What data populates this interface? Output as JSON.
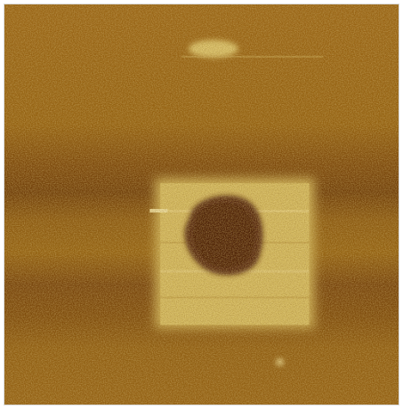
{
  "image": {
    "kind": "scanning-probe-micrograph",
    "palette": {
      "base": "#9a6612",
      "dark_band": "#6e3c08",
      "bright_frame": "#d8bf62",
      "bright_highlight": "#f0e09a",
      "dark_hole": "#4a1e04",
      "noise_light": "#c9a24a",
      "noise_dark": "#5a3008"
    },
    "features": [
      "square-bright-patch",
      "dark-central-hole",
      "bright-top-speck",
      "bright-bottom-speck",
      "horizontal-dark-bands"
    ]
  }
}
